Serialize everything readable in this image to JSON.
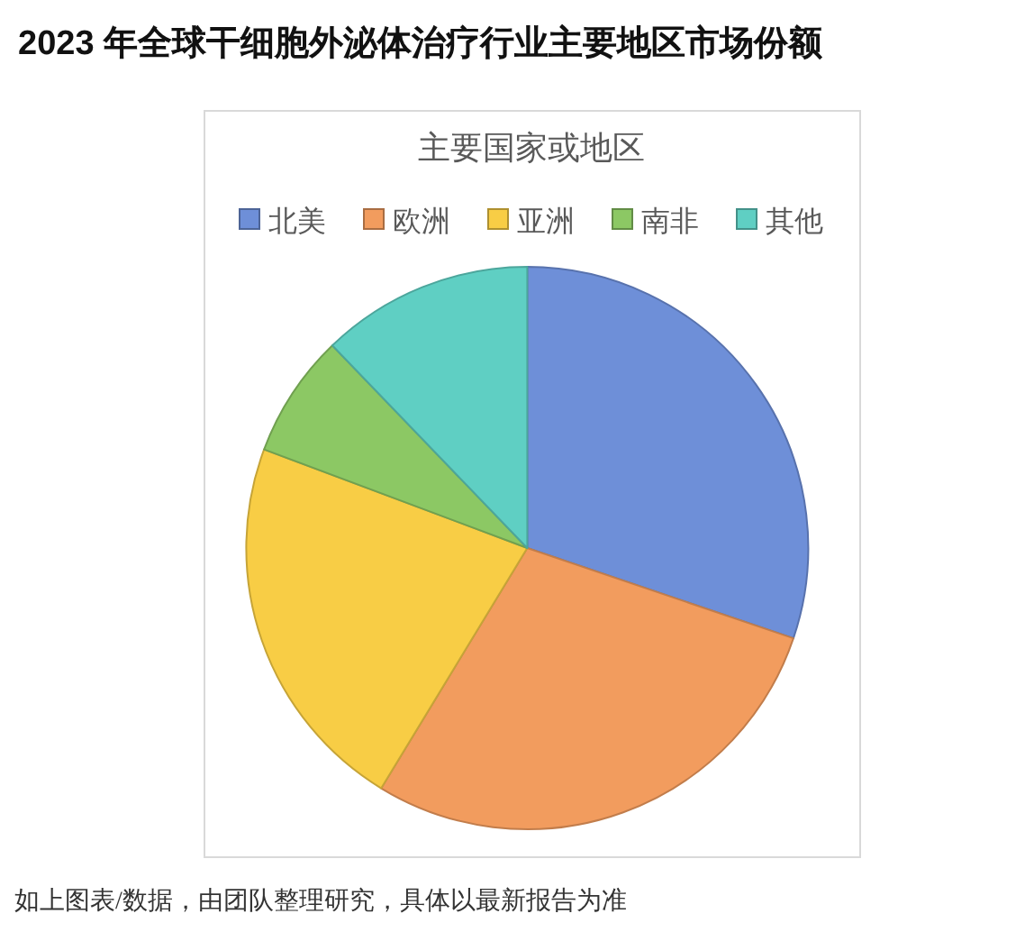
{
  "chart_data": {
    "type": "pie",
    "title": "2023 年全球干细胞外泌体治疗行业主要地区市场份额",
    "subtitle": "主要国家或地区",
    "categories": [
      "北美",
      "欧洲",
      "亚洲",
      "南非",
      "其他"
    ],
    "values": [
      30.2,
      28.5,
      22.0,
      7.1,
      12.2
    ],
    "colors": [
      "#6e8fd8",
      "#f29c5e",
      "#f8cd45",
      "#8cc864",
      "#5fcfc3"
    ],
    "legend": "top",
    "annotations": [
      "如上图表/数据，由团队整理研究，具体以最新报告为准"
    ]
  }
}
